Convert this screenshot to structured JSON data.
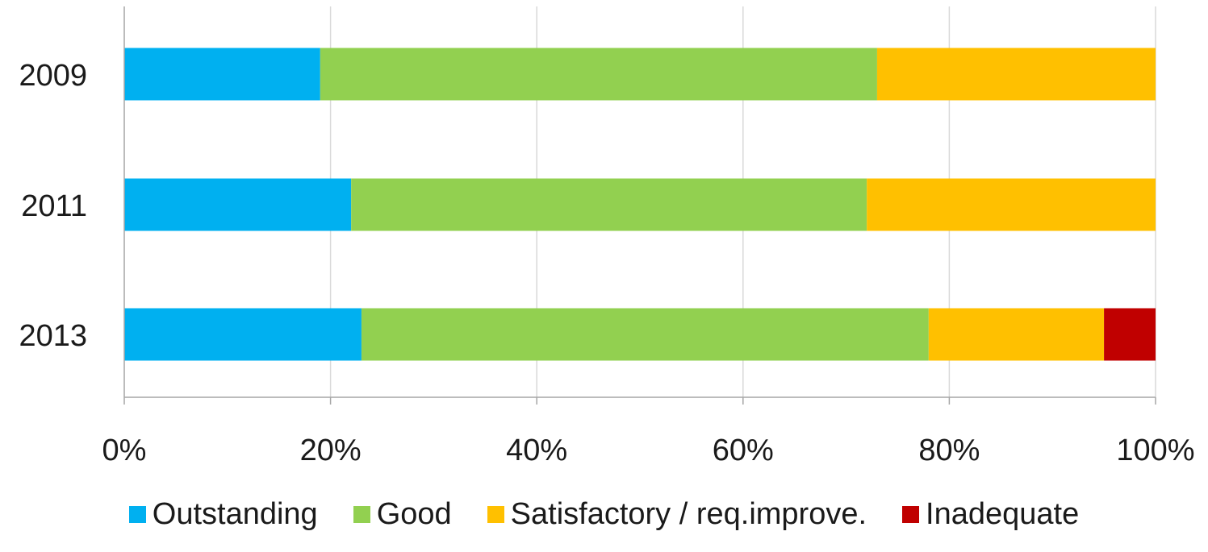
{
  "chart_data": {
    "type": "bar",
    "orientation": "horizontal",
    "stacked": "percent",
    "categories": [
      "2009",
      "2011",
      "2013"
    ],
    "series": [
      {
        "name": "Outstanding",
        "color": "#00B0F0",
        "values": [
          19,
          22,
          23
        ]
      },
      {
        "name": "Good",
        "color": "#92D050",
        "values": [
          54,
          50,
          55
        ]
      },
      {
        "name": "Satisfactory / req.improve.",
        "color": "#FFC000",
        "values": [
          27,
          28,
          17
        ]
      },
      {
        "name": "Inadequate",
        "color": "#C00000",
        "values": [
          0,
          0,
          5
        ]
      }
    ],
    "xlim": [
      0,
      100
    ],
    "x_ticks": [
      "0%",
      "20%",
      "40%",
      "60%",
      "80%",
      "100%"
    ],
    "x_tick_values": [
      0,
      20,
      40,
      60,
      80,
      100
    ],
    "grid": "vertical",
    "legend_position": "bottom",
    "title": "",
    "xlabel": "",
    "ylabel": ""
  }
}
